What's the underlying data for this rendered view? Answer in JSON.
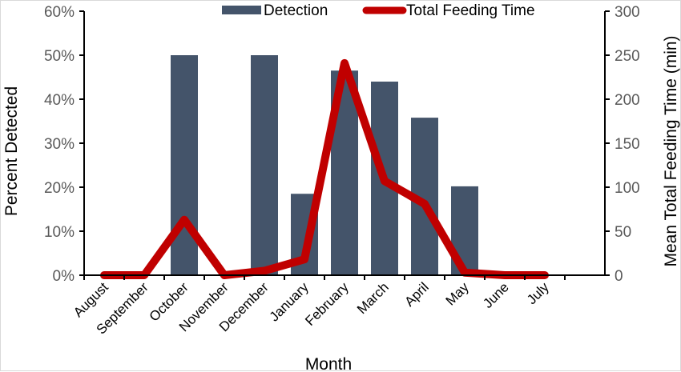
{
  "chart_data": {
    "type": "bar+line",
    "title": "",
    "xlabel": "Month",
    "ylabel": "Percent Detected",
    "ylabel_right": "Mean Total Feeding Time (min)",
    "categories": [
      "August",
      "September",
      "October",
      "November",
      "December",
      "January",
      "February",
      "March",
      "April",
      "May",
      "June",
      "July"
    ],
    "ylim": [
      0,
      60
    ],
    "ylim_right": [
      0,
      300
    ],
    "yticks": [
      "0%",
      "10%",
      "20%",
      "30%",
      "40%",
      "50%",
      "60%"
    ],
    "yticks_values": [
      0,
      10,
      20,
      30,
      40,
      50,
      60
    ],
    "yticks_right": [
      "0",
      "50",
      "100",
      "150",
      "200",
      "250",
      "300"
    ],
    "yticks_right_values": [
      0,
      50,
      100,
      150,
      200,
      250,
      300
    ],
    "grid": false,
    "legend_position": "top-center",
    "series": [
      {
        "name": "Detection",
        "type": "bar",
        "axis": "left",
        "color": "#44546a",
        "values": [
          0,
          0,
          50,
          0,
          50,
          18.5,
          46.5,
          44,
          35.8,
          20.2,
          0,
          0
        ]
      },
      {
        "name": "Total Feeding Time",
        "type": "line",
        "axis": "right",
        "color": "#c00000",
        "values": [
          0,
          0,
          63,
          0,
          5,
          18,
          241,
          107,
          81,
          3,
          0,
          0
        ]
      }
    ]
  }
}
